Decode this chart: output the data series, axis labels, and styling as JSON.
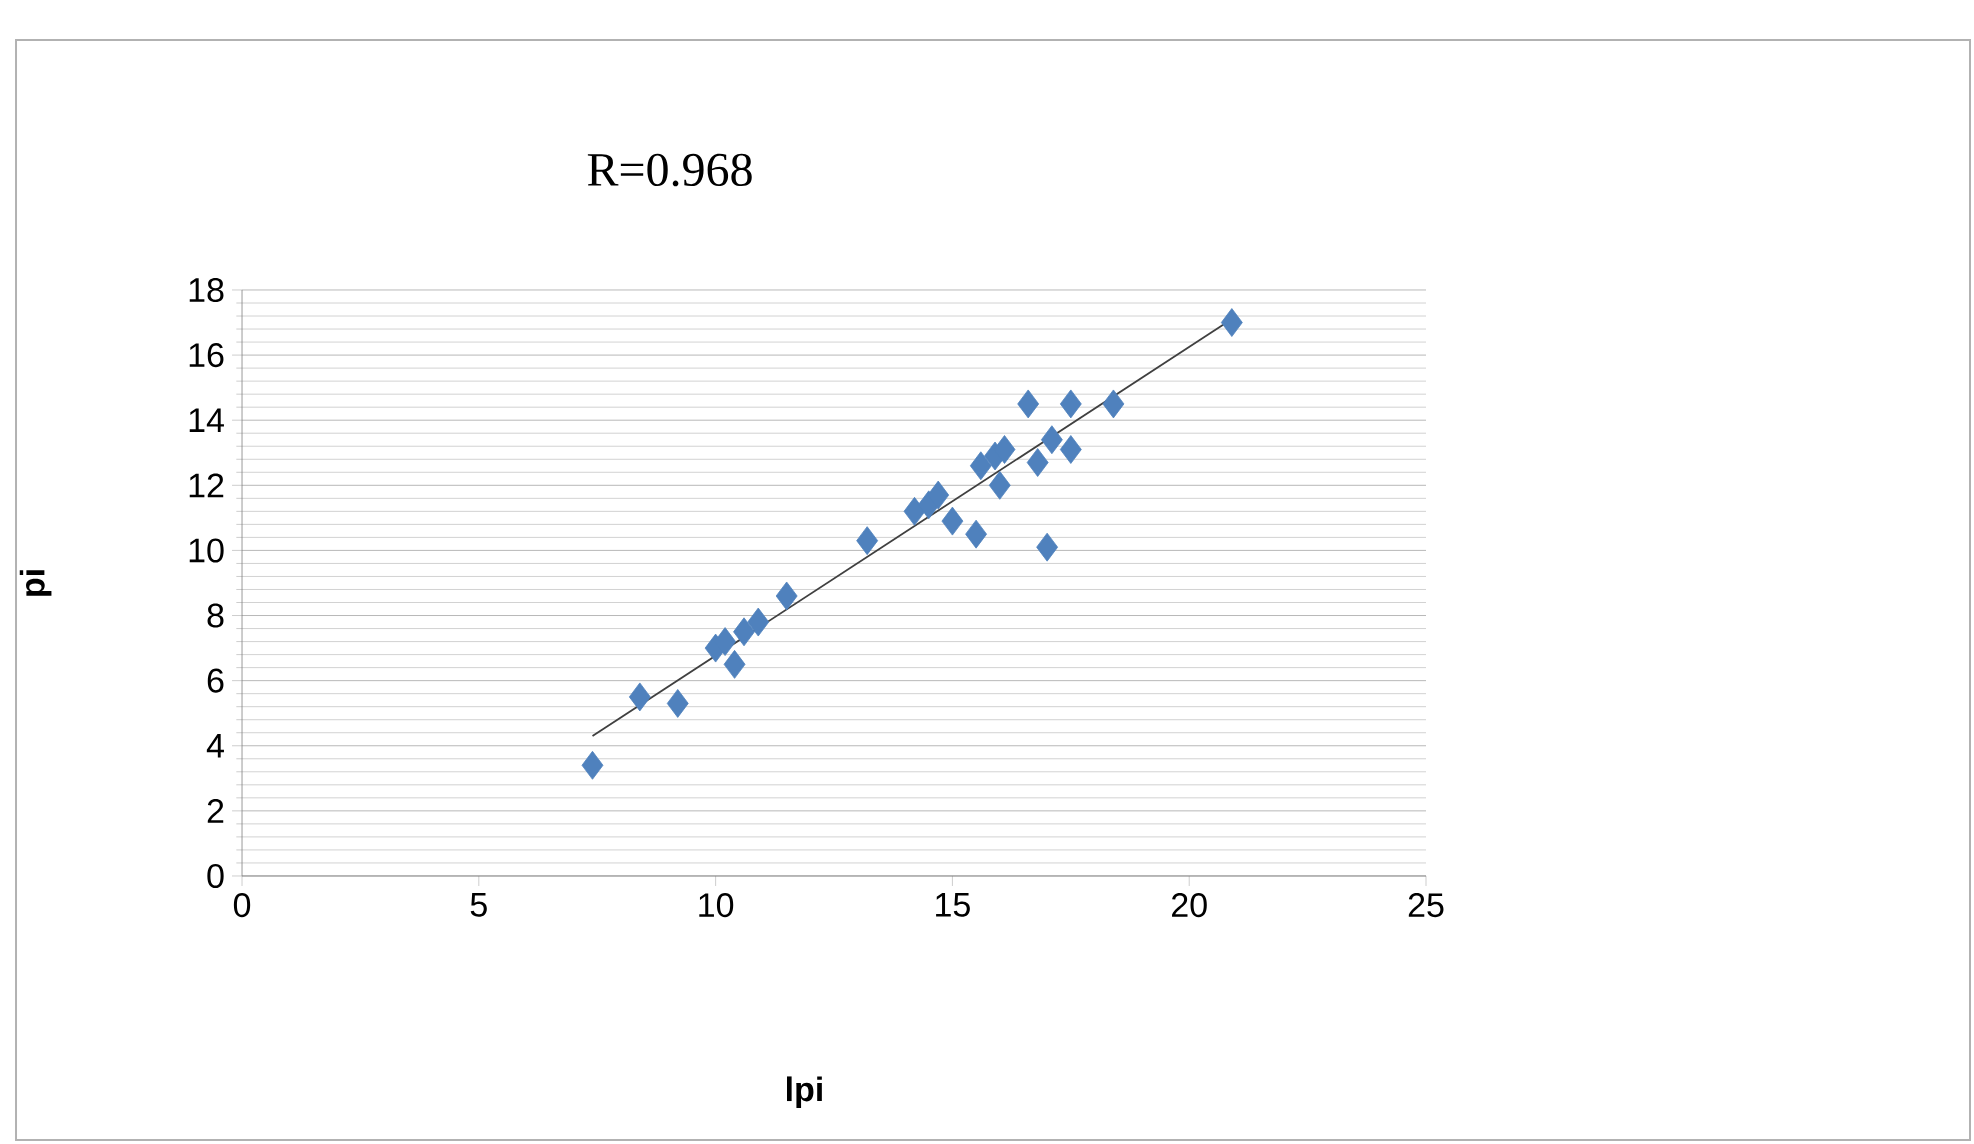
{
  "chart_data": {
    "type": "scatter",
    "xlabel": "lpi",
    "ylabel": "pi",
    "annotations": [
      "R=0.968"
    ],
    "xlim": [
      0,
      25
    ],
    "xticks": [
      0,
      5,
      10,
      15,
      20,
      25
    ],
    "ylim": [
      0,
      18
    ],
    "yticks": [
      0,
      2,
      4,
      6,
      8,
      10,
      12,
      14,
      16,
      18
    ],
    "grid": "y",
    "marker": "diamond",
    "series": [
      {
        "color": "#4f81bd",
        "x": [
          7.4,
          8.4,
          9.2,
          10.0,
          10.2,
          10.4,
          10.6,
          10.9,
          11.5,
          13.2,
          14.2,
          14.5,
          14.7,
          15.0,
          15.5,
          15.6,
          15.9,
          16.0,
          16.1,
          16.6,
          16.8,
          17.0,
          17.1,
          17.5,
          17.5,
          18.4,
          20.9
        ],
        "values": [
          3.4,
          5.5,
          5.3,
          7.0,
          7.2,
          6.5,
          7.5,
          7.8,
          8.6,
          10.3,
          11.2,
          11.4,
          11.7,
          10.9,
          10.5,
          12.6,
          12.9,
          12.0,
          13.1,
          14.5,
          12.7,
          10.1,
          13.4,
          13.1,
          14.5,
          14.5,
          17.0
        ]
      },
      {
        "type": "line",
        "color": "#404040",
        "marker": "none",
        "x": [
          7.4,
          21.0
        ],
        "values": [
          4.3,
          17.2
        ]
      }
    ]
  }
}
